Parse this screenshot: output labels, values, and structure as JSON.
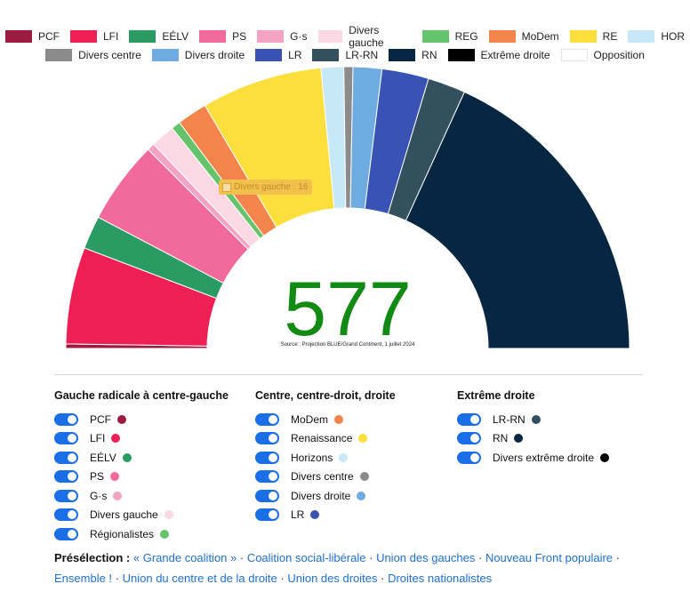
{
  "legend": [
    [
      {
        "label": "PCF",
        "color": "#9c1c41"
      },
      {
        "label": "LFI",
        "color": "#ee1f55"
      },
      {
        "label": "EÉLV",
        "color": "#2a9c63"
      },
      {
        "label": "PS",
        "color": "#f2699b"
      },
      {
        "label": "G·s",
        "color": "#f4a3c2"
      },
      {
        "label": "Divers gauche",
        "color": "#fbd8e4"
      },
      {
        "label": "REG",
        "color": "#65c36b"
      },
      {
        "label": "MoDem",
        "color": "#f3844c"
      },
      {
        "label": "RE",
        "color": "#fcde3c"
      },
      {
        "label": "HOR",
        "color": "#c7e8f7"
      }
    ],
    [
      {
        "label": "Divers centre",
        "color": "#8b8b8b"
      },
      {
        "label": "Divers droite",
        "color": "#6eabe0"
      },
      {
        "label": "LR",
        "color": "#3953b5"
      },
      {
        "label": "LR-RN",
        "color": "#33505f"
      },
      {
        "label": "RN",
        "color": "#062641"
      },
      {
        "label": "Extrême droite",
        "color": "#000000"
      },
      {
        "label": "Opposition",
        "color": "#ffffff"
      }
    ]
  ],
  "chart_data": {
    "type": "pie",
    "subtype": "parliament-semicircle",
    "total_label": "577",
    "source": "Source : Projection BLUE/Grand Continent, 1 juillet 2024",
    "slices": [
      {
        "label": "PCF",
        "value": 3,
        "color": "#9c1c41"
      },
      {
        "label": "LFI",
        "value": 64,
        "color": "#ee1f55"
      },
      {
        "label": "EÉLV",
        "value": 22,
        "color": "#2a9c63"
      },
      {
        "label": "PS",
        "value": 55,
        "color": "#f2699b"
      },
      {
        "label": "G·s",
        "value": 5,
        "color": "#f4a3c2"
      },
      {
        "label": "Divers gauche",
        "value": 16,
        "color": "#fbd8e4"
      },
      {
        "label": "REG",
        "value": 6,
        "color": "#65c36b"
      },
      {
        "label": "MoDem",
        "value": 20,
        "color": "#f3844c"
      },
      {
        "label": "RE",
        "value": 80,
        "color": "#fcde3c"
      },
      {
        "label": "HOR",
        "value": 15,
        "color": "#c7e8f7"
      },
      {
        "label": "Divers centre",
        "value": 6,
        "color": "#8b8b8b"
      },
      {
        "label": "Divers droite",
        "value": 19,
        "color": "#6eabe0"
      },
      {
        "label": "LR",
        "value": 31,
        "color": "#3953b5"
      },
      {
        "label": "LR-RN",
        "value": 25,
        "color": "#33505f"
      },
      {
        "label": "RN",
        "value": 210,
        "color": "#062641"
      }
    ],
    "tooltip": "Divers gauche : 16"
  },
  "groups": [
    {
      "title": "Gauche radicale à centre-gauche",
      "items": [
        {
          "label": "PCF",
          "color": "#9c1c41"
        },
        {
          "label": "LFI",
          "color": "#ee1f55"
        },
        {
          "label": "EÉLV",
          "color": "#2a9c63"
        },
        {
          "label": "PS",
          "color": "#f2699b"
        },
        {
          "label": "G·s",
          "color": "#f4a3c2"
        },
        {
          "label": "Divers gauche",
          "color": "#fbd8e4"
        },
        {
          "label": "Régionalistes",
          "color": "#65c36b"
        }
      ]
    },
    {
      "title": "Centre, centre-droit, droite",
      "items": [
        {
          "label": "MoDem",
          "color": "#f3844c"
        },
        {
          "label": "Renaissance",
          "color": "#fcde3c"
        },
        {
          "label": "Horizons",
          "color": "#c7e8f7"
        },
        {
          "label": "Divers centre",
          "color": "#8b8b8b"
        },
        {
          "label": "Divers droite",
          "color": "#6eabe0"
        },
        {
          "label": "LR",
          "color": "#3953b5"
        }
      ]
    },
    {
      "title": "Extrême droite",
      "items": [
        {
          "label": "LR-RN",
          "color": "#33505f"
        },
        {
          "label": "RN",
          "color": "#062641"
        },
        {
          "label": "Divers extrême droite",
          "color": "#000000"
        }
      ]
    }
  ],
  "preselection": {
    "label": "Présélection :",
    "links": [
      "« Grande coalition »",
      "Coalition social-libérale",
      "Union des gauches",
      "Nouveau Front populaire",
      "Ensemble !",
      "Union du centre et de la droite",
      "Union des droites",
      "Droites nationalistes"
    ]
  },
  "colors": {
    "accent": "#1a6ee6",
    "link": "#1f6fd0",
    "total": "#138a13"
  }
}
